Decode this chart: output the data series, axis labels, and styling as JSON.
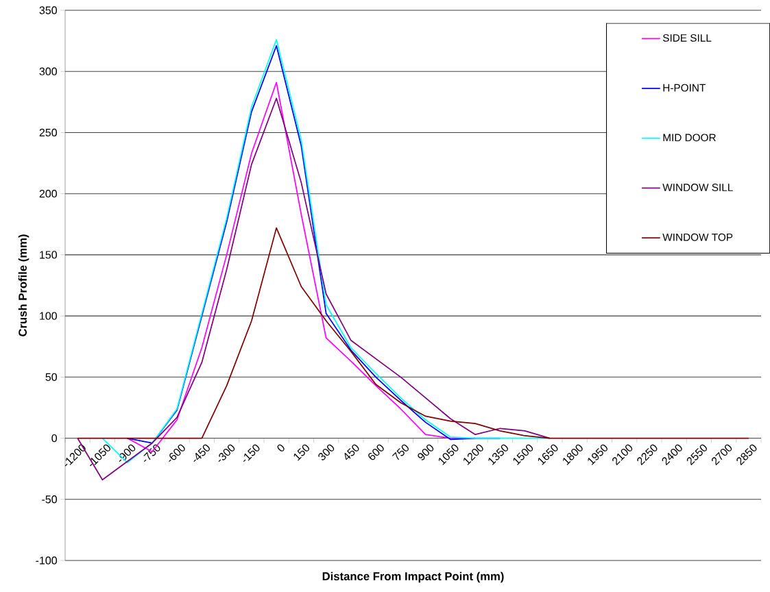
{
  "chart_data": {
    "type": "line",
    "xlabel": "Distance From Impact Point (mm)",
    "ylabel": "Crush Profile (mm)",
    "categories": [
      "-1200",
      "-1050",
      "-900",
      "-750",
      "-600",
      "-450",
      "-300",
      "-150",
      "0",
      "150",
      "300",
      "450",
      "600",
      "750",
      "900",
      "1050",
      "1200",
      "1350",
      "1500",
      "1650",
      "1800",
      "1950",
      "2100",
      "2250",
      "2400",
      "2550",
      "2700",
      "2850"
    ],
    "series": [
      {
        "name": "SIDE SILL",
        "color": "#ff00ff",
        "values": [
          null,
          null,
          0,
          -11,
          15,
          74,
          150,
          233,
          291,
          183,
          82,
          63,
          43,
          24,
          3,
          0,
          0,
          null,
          null,
          null,
          null,
          null,
          null,
          null,
          null,
          null,
          null,
          null
        ]
      },
      {
        "name": "H-POINT",
        "color": "#0000ff",
        "values": [
          null,
          null,
          0,
          -4,
          23,
          100,
          177,
          267,
          321,
          239,
          102,
          72,
          50,
          31,
          13,
          -1,
          0,
          0,
          null,
          null,
          null,
          null,
          null,
          null,
          null,
          null,
          null,
          null
        ]
      },
      {
        "name": "MID DOOR",
        "color": "#00ffff",
        "values": [
          null,
          0,
          -20,
          -4,
          24,
          102,
          180,
          271,
          326,
          244,
          109,
          74,
          53,
          33,
          15,
          1,
          0,
          0,
          0,
          0,
          null,
          null,
          null,
          null,
          null,
          null,
          null,
          null
        ]
      },
      {
        "name": "WINDOW SILL",
        "color": "#800080",
        "values": [
          0,
          -34,
          -19,
          -4,
          17,
          62,
          138,
          224,
          278,
          209,
          118,
          80,
          65,
          50,
          33,
          16,
          3,
          8,
          6,
          0,
          null,
          null,
          null,
          null,
          null,
          null,
          null,
          null
        ]
      },
      {
        "name": "WINDOW TOP",
        "color": "#800000",
        "values": [
          0,
          0,
          0,
          0,
          0,
          0,
          43,
          96,
          172,
          124,
          96,
          71,
          44,
          29,
          18,
          14,
          12,
          6,
          2,
          0,
          0,
          0,
          0,
          0,
          0,
          0,
          0,
          0
        ]
      }
    ],
    "ylim": [
      -100,
      350
    ],
    "yticks": [
      -100,
      -50,
      0,
      50,
      100,
      150,
      200,
      250,
      300,
      350
    ],
    "grid": "y",
    "legend": "top right"
  }
}
